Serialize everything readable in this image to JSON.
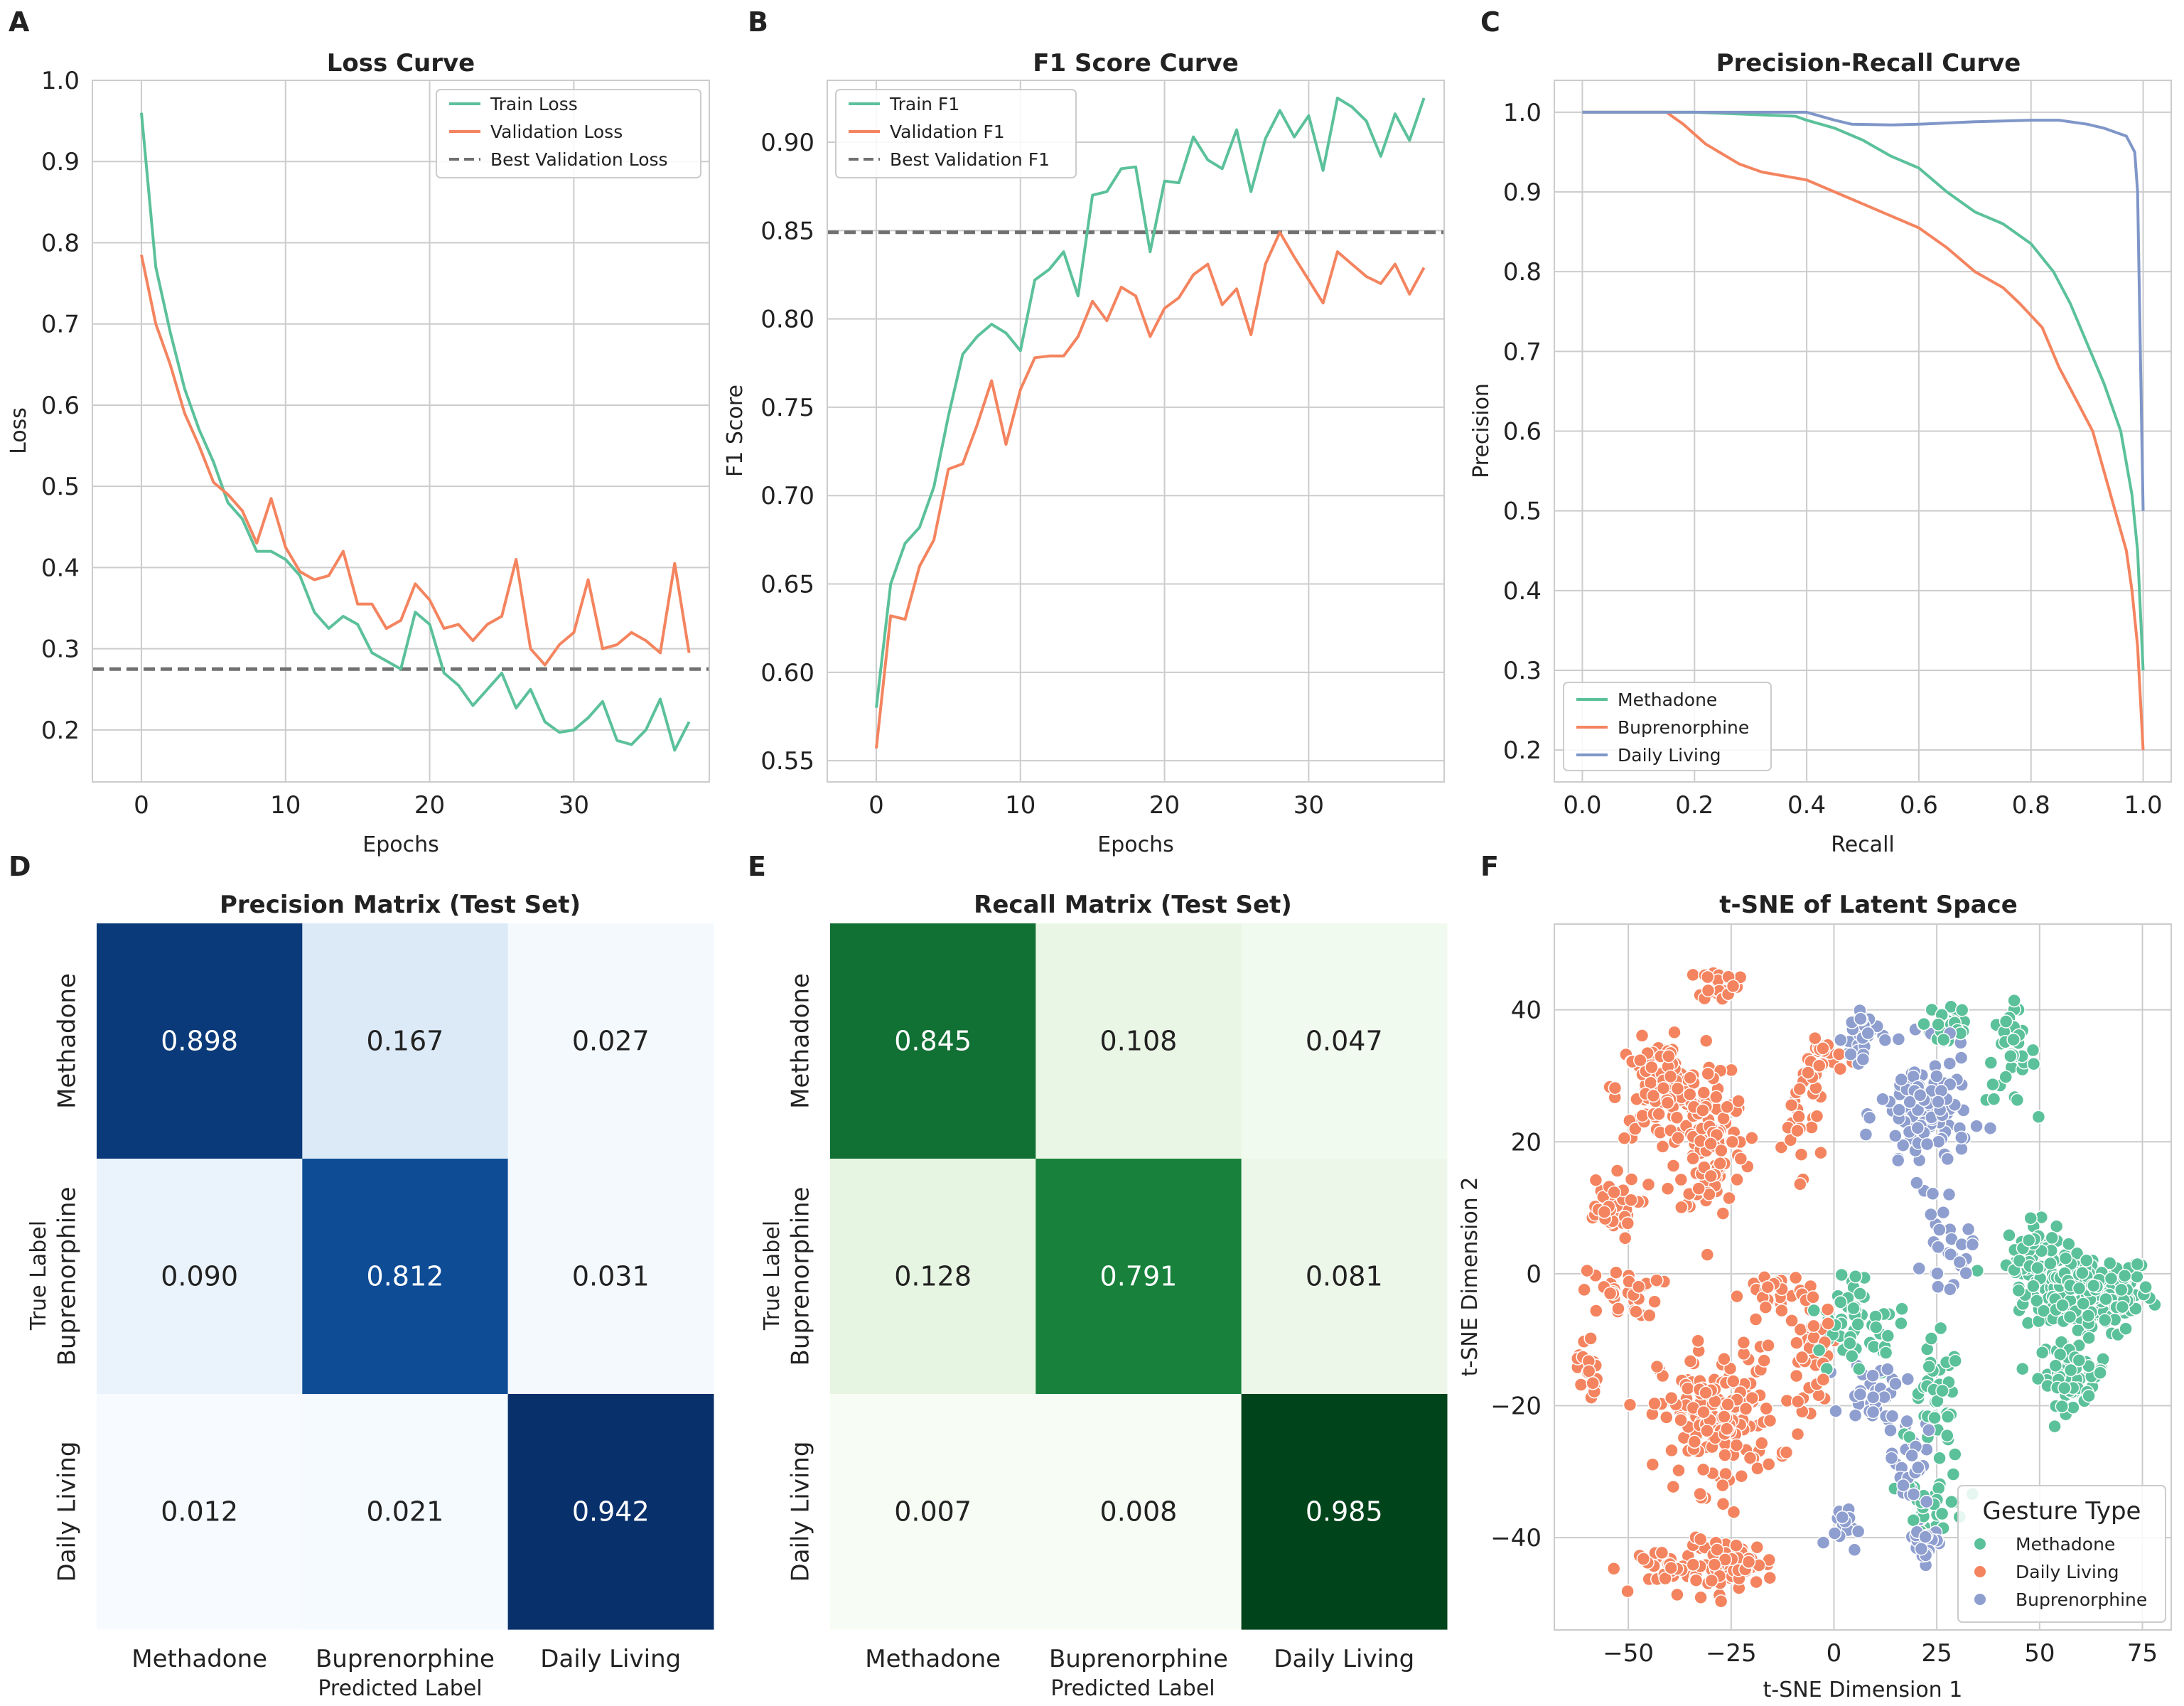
{
  "colors": {
    "train": "#5bc19b",
    "validation": "#f4845f",
    "daily_living_pr": "#7f96c8",
    "best_line": "#707070"
  },
  "chart_data": [
    {
      "panel": "A",
      "type": "line",
      "title": "Loss Curve",
      "xlabel": "Epochs",
      "ylabel": "Loss",
      "xlim": [
        -3.4,
        39.4
      ],
      "ylim": [
        0.136,
        1.0
      ],
      "xticks": [
        0,
        10,
        20,
        30
      ],
      "yticks": [
        0.2,
        0.3,
        0.4,
        0.5,
        0.6,
        0.7,
        0.8,
        0.9,
        1.0
      ],
      "ytick_labels": [
        "0.2",
        "0.3",
        "0.4",
        "0.5",
        "0.6",
        "0.7",
        "0.8",
        "0.9",
        "1.0"
      ],
      "legend_position": "top-right",
      "x": [
        0,
        1,
        2,
        3,
        4,
        5,
        6,
        7,
        8,
        9,
        10,
        11,
        12,
        13,
        14,
        15,
        16,
        17,
        18,
        19,
        20,
        21,
        22,
        23,
        24,
        25,
        26,
        27,
        28,
        29,
        30,
        31,
        32,
        33,
        34,
        35,
        36,
        37,
        38
      ],
      "series": [
        {
          "name": "Train Loss",
          "color": "#5bc19b",
          "values": [
            0.96,
            0.77,
            0.69,
            0.62,
            0.57,
            0.53,
            0.48,
            0.46,
            0.42,
            0.42,
            0.41,
            0.39,
            0.345,
            0.325,
            0.34,
            0.33,
            0.295,
            0.285,
            0.275,
            0.345,
            0.33,
            0.27,
            0.255,
            0.23,
            0.25,
            0.27,
            0.227,
            0.25,
            0.21,
            0.197,
            0.2,
            0.215,
            0.235,
            0.187,
            0.182,
            0.2,
            0.238,
            0.175,
            0.21
          ]
        },
        {
          "name": "Validation Loss",
          "color": "#f4845f",
          "values": [
            0.785,
            0.7,
            0.65,
            0.59,
            0.55,
            0.505,
            0.49,
            0.47,
            0.43,
            0.485,
            0.425,
            0.395,
            0.385,
            0.39,
            0.42,
            0.355,
            0.355,
            0.325,
            0.335,
            0.38,
            0.36,
            0.325,
            0.33,
            0.31,
            0.33,
            0.34,
            0.41,
            0.3,
            0.28,
            0.305,
            0.32,
            0.385,
            0.3,
            0.305,
            0.32,
            0.31,
            0.295,
            0.405,
            0.295
          ]
        }
      ],
      "reference_line": {
        "name": "Best Validation Loss",
        "value": 0.275
      }
    },
    {
      "panel": "B",
      "type": "line",
      "title": "F1 Score Curve",
      "xlabel": "Epochs",
      "ylabel": "F1 Score",
      "xlim": [
        -3.4,
        39.4
      ],
      "ylim": [
        0.538,
        0.935
      ],
      "xticks": [
        0,
        10,
        20,
        30
      ],
      "yticks": [
        0.55,
        0.6,
        0.65,
        0.7,
        0.75,
        0.8,
        0.85,
        0.9
      ],
      "ytick_labels": [
        "0.55",
        "0.60",
        "0.65",
        "0.70",
        "0.75",
        "0.80",
        "0.85",
        "0.90"
      ],
      "legend_position": "top-left",
      "x": [
        0,
        1,
        2,
        3,
        4,
        5,
        6,
        7,
        8,
        9,
        10,
        11,
        12,
        13,
        14,
        15,
        16,
        17,
        18,
        19,
        20,
        21,
        22,
        23,
        24,
        25,
        26,
        27,
        28,
        29,
        30,
        31,
        32,
        33,
        34,
        35,
        36,
        37,
        38
      ],
      "series": [
        {
          "name": "Train F1",
          "color": "#5bc19b",
          "values": [
            0.58,
            0.65,
            0.673,
            0.682,
            0.705,
            0.745,
            0.78,
            0.79,
            0.797,
            0.792,
            0.782,
            0.822,
            0.828,
            0.838,
            0.813,
            0.87,
            0.872,
            0.885,
            0.886,
            0.838,
            0.878,
            0.877,
            0.903,
            0.89,
            0.885,
            0.907,
            0.872,
            0.902,
            0.918,
            0.903,
            0.915,
            0.884,
            0.925,
            0.92,
            0.912,
            0.892,
            0.916,
            0.901,
            0.925
          ]
        },
        {
          "name": "Validation F1",
          "color": "#f4845f",
          "values": [
            0.557,
            0.632,
            0.63,
            0.66,
            0.675,
            0.715,
            0.718,
            0.74,
            0.765,
            0.729,
            0.76,
            0.778,
            0.779,
            0.779,
            0.79,
            0.81,
            0.799,
            0.818,
            0.813,
            0.79,
            0.806,
            0.812,
            0.825,
            0.831,
            0.808,
            0.817,
            0.791,
            0.831,
            0.849,
            0.835,
            0.822,
            0.809,
            0.838,
            0.831,
            0.824,
            0.82,
            0.831,
            0.814,
            0.829
          ]
        }
      ],
      "reference_line": {
        "name": "Best Validation F1",
        "value": 0.849
      }
    },
    {
      "panel": "C",
      "type": "line",
      "title": "Precision-Recall Curve",
      "xlabel": "Recall",
      "ylabel": "Precision",
      "xlim": [
        -0.05,
        1.05
      ],
      "ylim": [
        0.16,
        1.04
      ],
      "xticks": [
        0.0,
        0.2,
        0.4,
        0.6,
        0.8,
        1.0
      ],
      "xtick_labels": [
        "0.0",
        "0.2",
        "0.4",
        "0.6",
        "0.8",
        "1.0"
      ],
      "yticks": [
        0.2,
        0.3,
        0.4,
        0.5,
        0.6,
        0.7,
        0.8,
        0.9,
        1.0
      ],
      "ytick_labels": [
        "0.2",
        "0.3",
        "0.4",
        "0.5",
        "0.6",
        "0.7",
        "0.8",
        "0.9",
        "1.0"
      ],
      "legend_position": "lower-left",
      "series": [
        {
          "name": "Methadone",
          "color": "#5bc19b",
          "x": [
            0,
            0.2,
            0.38,
            0.4,
            0.45,
            0.5,
            0.55,
            0.6,
            0.65,
            0.7,
            0.75,
            0.8,
            0.84,
            0.87,
            0.9,
            0.93,
            0.96,
            0.98,
            0.99,
            1.0
          ],
          "y": [
            1,
            1,
            0.995,
            0.99,
            0.98,
            0.965,
            0.945,
            0.93,
            0.9,
            0.875,
            0.86,
            0.835,
            0.8,
            0.76,
            0.71,
            0.66,
            0.6,
            0.52,
            0.45,
            0.3
          ]
        },
        {
          "name": "Buprenorphine",
          "color": "#f4845f",
          "x": [
            0,
            0.15,
            0.18,
            0.22,
            0.28,
            0.32,
            0.4,
            0.45,
            0.5,
            0.55,
            0.6,
            0.65,
            0.7,
            0.75,
            0.78,
            0.82,
            0.85,
            0.88,
            0.91,
            0.93,
            0.95,
            0.97,
            0.98,
            0.99,
            1.0
          ],
          "y": [
            1,
            1,
            0.985,
            0.96,
            0.935,
            0.925,
            0.915,
            0.9,
            0.885,
            0.87,
            0.855,
            0.83,
            0.8,
            0.78,
            0.76,
            0.73,
            0.68,
            0.64,
            0.6,
            0.55,
            0.5,
            0.45,
            0.4,
            0.33,
            0.2
          ]
        },
        {
          "name": "Daily Living",
          "color": "#7f96c8",
          "x": [
            0,
            0.4,
            0.45,
            0.48,
            0.55,
            0.6,
            0.7,
            0.8,
            0.85,
            0.9,
            0.93,
            0.95,
            0.97,
            0.985,
            0.99,
            0.995,
            1.0
          ],
          "y": [
            1,
            1,
            0.99,
            0.985,
            0.984,
            0.985,
            0.988,
            0.99,
            0.99,
            0.985,
            0.98,
            0.975,
            0.97,
            0.95,
            0.9,
            0.7,
            0.5
          ]
        }
      ]
    },
    {
      "panel": "D",
      "type": "heatmap",
      "title": "Precision Matrix (Test Set)",
      "xlabel": "Predicted Label",
      "ylabel": "True Label",
      "colormap": "Blues",
      "row_labels": [
        "Methadone",
        "Buprenorphine",
        "Daily Living"
      ],
      "col_labels": [
        "Methadone",
        "Buprenorphine",
        "Daily Living"
      ],
      "values": [
        [
          0.898,
          0.167,
          0.027
        ],
        [
          0.09,
          0.812,
          0.031
        ],
        [
          0.012,
          0.021,
          0.942
        ]
      ],
      "value_labels": [
        [
          "0.898",
          "0.167",
          "0.027"
        ],
        [
          "0.090",
          "0.812",
          "0.031"
        ],
        [
          "0.012",
          "0.021",
          "0.942"
        ]
      ]
    },
    {
      "panel": "E",
      "type": "heatmap",
      "title": "Recall Matrix (Test Set)",
      "xlabel": "Predicted Label",
      "ylabel": "True Label",
      "colormap": "Greens",
      "row_labels": [
        "Methadone",
        "Buprenorphine",
        "Daily Living"
      ],
      "col_labels": [
        "Methadone",
        "Buprenorphine",
        "Daily Living"
      ],
      "values": [
        [
          0.845,
          0.108,
          0.047
        ],
        [
          0.128,
          0.791,
          0.081
        ],
        [
          0.007,
          0.008,
          0.985
        ]
      ],
      "value_labels": [
        [
          "0.845",
          "0.108",
          "0.047"
        ],
        [
          "0.128",
          "0.791",
          "0.081"
        ],
        [
          "0.007",
          "0.008",
          "0.985"
        ]
      ]
    },
    {
      "panel": "F",
      "type": "scatter",
      "title": "t-SNE of Latent Space",
      "xlabel": "t-SNE Dimension 1",
      "ylabel": "t-SNE Dimension 2",
      "xlim": [
        -68,
        82
      ],
      "ylim": [
        -54,
        53
      ],
      "xticks": [
        -50,
        -25,
        0,
        25,
        50,
        75
      ],
      "xtick_labels": [
        "−50",
        "−25",
        "0",
        "25",
        "50",
        "75"
      ],
      "yticks": [
        -40,
        -20,
        0,
        20,
        40
      ],
      "ytick_labels": [
        "−40",
        "−20",
        "0",
        "20",
        "40"
      ],
      "legend_title": "Gesture Type",
      "legend_position": "lower-right",
      "series": [
        {
          "name": "Methadone",
          "color": "#5bc19b",
          "clusters": [
            [
              62,
              -3,
              13,
              5,
              180
            ],
            [
              48,
              3,
              5,
              4,
              60
            ],
            [
              58,
              -15,
              7,
              4,
              60
            ],
            [
              43,
              33,
              5,
              6,
              35
            ],
            [
              28,
              38,
              5,
              4,
              30
            ],
            [
              5,
              -10,
              12,
              5,
              40
            ],
            [
              25,
              -20,
              5,
              8,
              40
            ],
            [
              25,
              -35,
              6,
              4,
              30
            ],
            [
              5,
              -3,
              3,
              3,
              15
            ]
          ]
        },
        {
          "name": "Daily Living",
          "color": "#f4845f",
          "clusters": [
            [
              -42,
              28,
              9,
              6,
              110
            ],
            [
              -30,
              20,
              7,
              10,
              110
            ],
            [
              -28,
              44,
              4,
              2,
              25
            ],
            [
              -55,
              10,
              6,
              4,
              40
            ],
            [
              -52,
              -3,
              8,
              3,
              30
            ],
            [
              -60,
              -14,
              2,
              5,
              20
            ],
            [
              -28,
              -22,
              12,
              9,
              170
            ],
            [
              -25,
              -44,
              9,
              3,
              70
            ],
            [
              -40,
              -45,
              6,
              3,
              30
            ],
            [
              -5,
              -12,
              5,
              7,
              40
            ],
            [
              -15,
              -3,
              6,
              3,
              30
            ],
            [
              -8,
              25,
              4,
              8,
              30
            ],
            [
              -2,
              33,
              4,
              2,
              20
            ]
          ]
        },
        {
          "name": "Buprenorphine",
          "color": "#8e9ecf",
          "clusters": [
            [
              22,
              24,
              9,
              8,
              120
            ],
            [
              7,
              36,
              4,
              5,
              30
            ],
            [
              28,
              3,
              5,
              4,
              25
            ],
            [
              10,
              -18,
              6,
              4,
              30
            ],
            [
              18,
              -28,
              4,
              6,
              30
            ],
            [
              22,
              -40,
              4,
              3,
              25
            ],
            [
              2,
              -38,
              3,
              3,
              15
            ]
          ]
        }
      ]
    }
  ]
}
